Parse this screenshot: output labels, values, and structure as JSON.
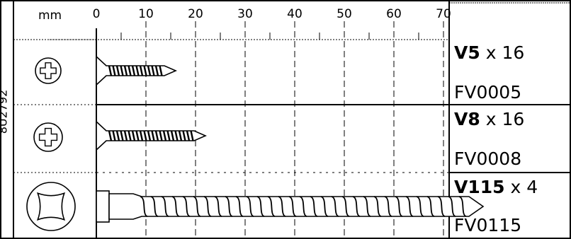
{
  "unit_label": "mm",
  "doc_ref": "8U2792",
  "scale_ticks": [
    "0",
    "10",
    "20",
    "30",
    "40",
    "50",
    "60",
    "70"
  ],
  "items": [
    {
      "code": "V5",
      "quantity": "x 16",
      "part_number": "FV0005",
      "screw_length_mm": 16,
      "head": "cross"
    },
    {
      "code": "V8",
      "quantity": "x 16",
      "part_number": "FV0008",
      "screw_length_mm": 22,
      "head": "cross"
    },
    {
      "code": "V115",
      "quantity": "x 4",
      "part_number": "FV0115",
      "screw_length_mm": 78,
      "head": "square-drive"
    }
  ]
}
